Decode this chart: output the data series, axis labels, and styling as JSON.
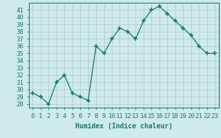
{
  "x": [
    0,
    1,
    2,
    3,
    4,
    5,
    6,
    7,
    8,
    9,
    10,
    11,
    12,
    13,
    14,
    15,
    16,
    17,
    18,
    19,
    20,
    21,
    22,
    23
  ],
  "y": [
    29.5,
    29,
    28,
    31,
    32,
    29.5,
    29,
    28.5,
    36,
    35,
    37,
    38.5,
    38,
    37,
    39.5,
    41,
    41.5,
    40.5,
    39.5,
    38.5,
    37.5,
    36,
    35,
    35
  ],
  "line_color": "#1a7a6e",
  "marker": "+",
  "bg_color": "#ceeaea",
  "grid_color": "#b0cece",
  "xlabel": "Humidex (Indice chaleur)",
  "ylabel_ticks": [
    28,
    29,
    30,
    31,
    32,
    33,
    34,
    35,
    36,
    37,
    38,
    39,
    40,
    41
  ],
  "ylim": [
    27.5,
    42
  ],
  "xlim": [
    -0.5,
    23.5
  ],
  "label_fontsize": 7,
  "tick_fontsize": 6.5
}
